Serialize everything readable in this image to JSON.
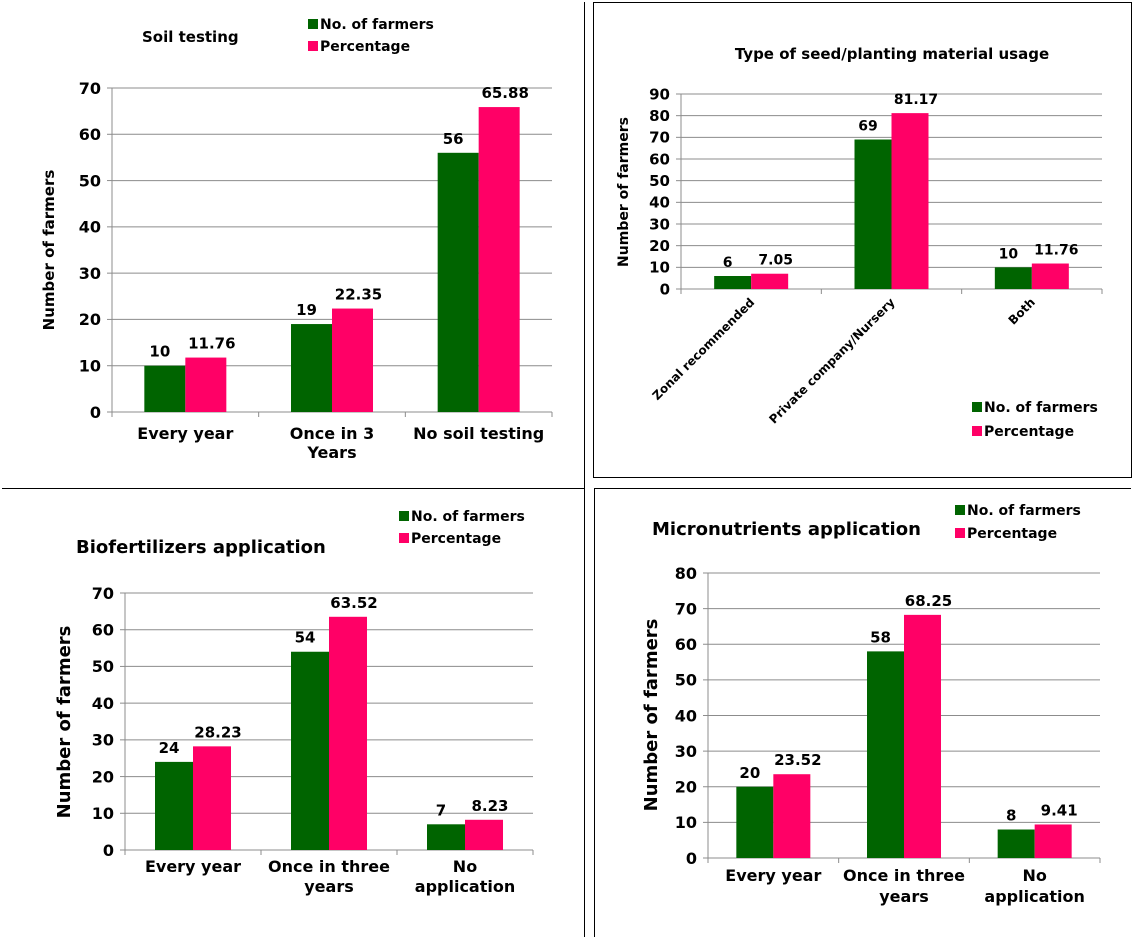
{
  "colors": {
    "farmers": "#006400",
    "percentage": "#ff0066"
  },
  "chart_data": [
    {
      "type": "bar",
      "title": "Soil testing",
      "ylabel": "Number of farmers",
      "ylim": [
        0,
        70
      ],
      "yticks": [
        0,
        10,
        20,
        30,
        40,
        50,
        60,
        70
      ],
      "categories": [
        [
          "Every year"
        ],
        [
          "Once in 3",
          "Years"
        ],
        [
          "No soil testing"
        ]
      ],
      "legend": "top",
      "grid": true,
      "series": [
        {
          "name": "No. of farmers",
          "values": [
            10,
            19,
            56
          ],
          "labels": [
            "10",
            "19",
            "56"
          ]
        },
        {
          "name": "Percentage",
          "values": [
            11.76,
            22.35,
            65.88
          ],
          "labels": [
            "11.76",
            "22.35",
            "65.88"
          ]
        }
      ]
    },
    {
      "type": "bar",
      "title": "Type of seed/planting material usage",
      "ylabel": "Number of farmers",
      "ylim": [
        0,
        90
      ],
      "yticks": [
        0,
        10,
        20,
        30,
        40,
        50,
        60,
        70,
        80,
        90
      ],
      "categories": [
        [
          "Zonal recommended"
        ],
        [
          "Private company/Nursery"
        ],
        [
          "Both"
        ]
      ],
      "legend": "bottom-right",
      "grid": true,
      "series": [
        {
          "name": "No. of farmers",
          "values": [
            6,
            69,
            10
          ],
          "labels": [
            "6",
            "69",
            "10"
          ]
        },
        {
          "name": "Percentage",
          "values": [
            7.05,
            81.17,
            11.76
          ],
          "labels": [
            "7.05",
            "81.17",
            "11.76"
          ]
        }
      ]
    },
    {
      "type": "bar",
      "title": "Biofertilizers application",
      "ylabel": "Number of farmers",
      "ylim": [
        0,
        70
      ],
      "yticks": [
        0,
        10,
        20,
        30,
        40,
        50,
        60,
        70
      ],
      "categories": [
        [
          "Every year"
        ],
        [
          "Once in three",
          "years"
        ],
        [
          "No",
          "application"
        ]
      ],
      "legend": "top-right",
      "grid": true,
      "series": [
        {
          "name": "No. of farmers",
          "values": [
            24,
            54,
            7
          ],
          "labels": [
            "24",
            "54",
            "7"
          ]
        },
        {
          "name": "Percentage",
          "values": [
            28.23,
            63.52,
            8.23
          ],
          "labels": [
            "28.23",
            "63.52",
            "8.23"
          ]
        }
      ]
    },
    {
      "type": "bar",
      "title": "Micronutrients application",
      "ylabel": "Number of farmers",
      "ylim": [
        0,
        80
      ],
      "yticks": [
        0,
        10,
        20,
        30,
        40,
        50,
        60,
        70,
        80
      ],
      "categories": [
        [
          "Every year"
        ],
        [
          "Once in three",
          "years"
        ],
        [
          "No",
          "application"
        ]
      ],
      "legend": "top-right",
      "grid": true,
      "series": [
        {
          "name": "No. of farmers",
          "values": [
            20,
            58,
            8
          ],
          "labels": [
            "20",
            "58",
            "8"
          ]
        },
        {
          "name": "Percentage",
          "values": [
            23.52,
            68.25,
            9.41
          ],
          "labels": [
            "23.52",
            "68.25",
            "9.41"
          ]
        }
      ]
    }
  ]
}
